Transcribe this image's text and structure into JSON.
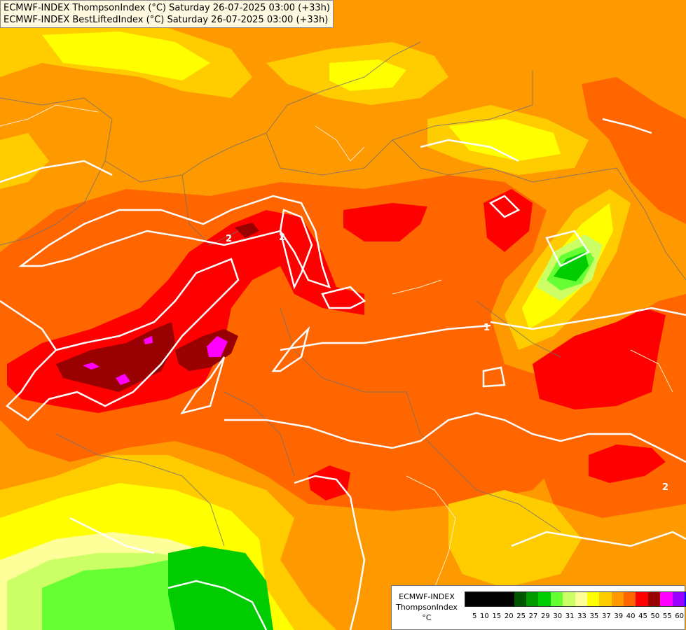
{
  "title": {
    "line1": "ECMWF-INDEX ThompsonIndex (°C) Saturday 26-07-2025 03:00 (+33h)",
    "line2": "ECMWF-INDEX BestLiftedIndex (°C) Saturday 26-07-2025 03:00 (+33h)"
  },
  "legend": {
    "model": "ECMWF-INDEX",
    "parameter": "ThompsonIndex",
    "unit": "°C",
    "ticks": [
      "5",
      "10",
      "15",
      "20",
      "25",
      "27",
      "29",
      "30",
      "31",
      "33",
      "35",
      "37",
      "39",
      "40",
      "45",
      "50",
      "55",
      "60"
    ],
    "colors": [
      "#000000",
      "#000000",
      "#000000",
      "#000000",
      "#005500",
      "#009900",
      "#00cc00",
      "#66ff33",
      "#ccff66",
      "#ffff99",
      "#ffff00",
      "#ffcc00",
      "#ff9900",
      "#ff6600",
      "#ff0000",
      "#990000",
      "#ff00ff",
      "#9900ff",
      "#0000ff"
    ]
  },
  "contour_labels": [
    "2",
    "2",
    "1",
    "2"
  ],
  "colors": {
    "orange_light": "#ffcc00",
    "orange": "#ff9900",
    "orange_dark": "#ff6600",
    "red": "#ff0000",
    "dark_red": "#990000",
    "magenta": "#ff00ff",
    "yellow": "#ffff00",
    "pale_yellow": "#ffff99",
    "green": "#00cc00",
    "light_green": "#66ff33"
  }
}
